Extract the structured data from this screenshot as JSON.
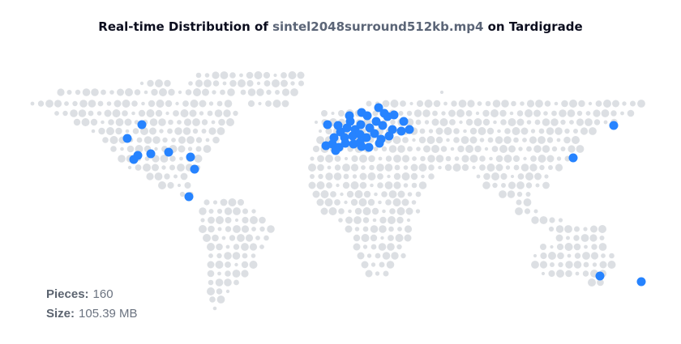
{
  "header": {
    "title_prefix": "Real-time Distribution of",
    "file_name": "sintel2048surround512kb.mp4",
    "title_suffix": "on Tardigrade"
  },
  "stats": {
    "pieces_label": "Pieces:",
    "pieces_value": "160",
    "size_label": "Size:",
    "size_value": "105.39 MB"
  }
}
